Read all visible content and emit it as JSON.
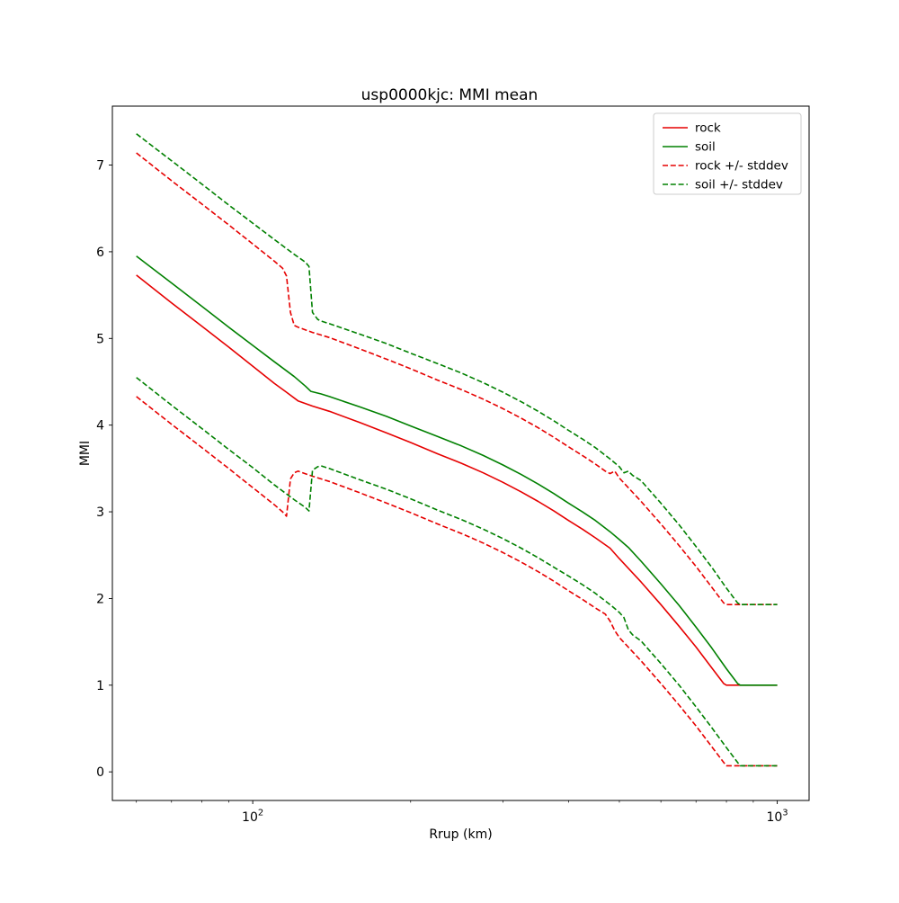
{
  "chart_data": {
    "type": "line",
    "title": "usp0000kjc: MMI mean",
    "xlabel": "Rrup (km)",
    "ylabel": "MMI",
    "x_scale": "log",
    "xlim": [
      54,
      1150
    ],
    "ylim": [
      -0.33,
      7.68
    ],
    "y_ticks": [
      0,
      1,
      2,
      3,
      4,
      5,
      6,
      7
    ],
    "x_major_ticks": [
      {
        "value": 100,
        "base": "10",
        "exp": "2"
      },
      {
        "value": 1000,
        "base": "10",
        "exp": "3"
      }
    ],
    "x_minor_ticks": [
      60,
      70,
      80,
      90,
      200,
      300,
      400,
      500,
      600,
      700,
      800,
      900
    ],
    "grid": false,
    "colors": {
      "rock": "#e60000",
      "soil": "#008000",
      "axis": "#000000",
      "legend_border": "#cccccc"
    },
    "legend": {
      "position": "upper right",
      "entries": [
        {
          "label": "rock",
          "color": "#e60000",
          "dash": "solid"
        },
        {
          "label": "soil",
          "color": "#008000",
          "dash": "solid"
        },
        {
          "label": "rock +/- stddev",
          "color": "#e60000",
          "dash": "dashed"
        },
        {
          "label": "soil +/- stddev",
          "color": "#008000",
          "dash": "dashed"
        }
      ]
    },
    "series": [
      {
        "name": "rock",
        "color": "#e60000",
        "dash": "solid",
        "points": [
          [
            60,
            5.73
          ],
          [
            70,
            5.41
          ],
          [
            80,
            5.14
          ],
          [
            90,
            4.9
          ],
          [
            100,
            4.68
          ],
          [
            110,
            4.48
          ],
          [
            116,
            4.38
          ],
          [
            122,
            4.28
          ],
          [
            130,
            4.22
          ],
          [
            140,
            4.16
          ],
          [
            160,
            4.03
          ],
          [
            180,
            3.91
          ],
          [
            200,
            3.8
          ],
          [
            225,
            3.67
          ],
          [
            250,
            3.56
          ],
          [
            275,
            3.45
          ],
          [
            300,
            3.34
          ],
          [
            325,
            3.23
          ],
          [
            350,
            3.12
          ],
          [
            375,
            3.01
          ],
          [
            400,
            2.9
          ],
          [
            425,
            2.8
          ],
          [
            450,
            2.7
          ],
          [
            480,
            2.58
          ],
          [
            500,
            2.46
          ],
          [
            550,
            2.19
          ],
          [
            600,
            1.93
          ],
          [
            650,
            1.68
          ],
          [
            700,
            1.44
          ],
          [
            750,
            1.2
          ],
          [
            790,
            1.02
          ],
          [
            800,
            1.0
          ],
          [
            900,
            1.0
          ],
          [
            1000,
            1.0
          ]
        ]
      },
      {
        "name": "soil",
        "color": "#008000",
        "dash": "solid",
        "points": [
          [
            60,
            5.95
          ],
          [
            70,
            5.64
          ],
          [
            80,
            5.37
          ],
          [
            90,
            5.13
          ],
          [
            100,
            4.92
          ],
          [
            110,
            4.73
          ],
          [
            120,
            4.56
          ],
          [
            126,
            4.45
          ],
          [
            129,
            4.39
          ],
          [
            135,
            4.36
          ],
          [
            140,
            4.33
          ],
          [
            160,
            4.21
          ],
          [
            180,
            4.1
          ],
          [
            200,
            3.99
          ],
          [
            225,
            3.87
          ],
          [
            250,
            3.76
          ],
          [
            275,
            3.65
          ],
          [
            300,
            3.54
          ],
          [
            325,
            3.43
          ],
          [
            350,
            3.32
          ],
          [
            375,
            3.21
          ],
          [
            400,
            3.1
          ],
          [
            425,
            3.0
          ],
          [
            450,
            2.9
          ],
          [
            480,
            2.77
          ],
          [
            500,
            2.68
          ],
          [
            520,
            2.59
          ],
          [
            550,
            2.43
          ],
          [
            600,
            2.17
          ],
          [
            650,
            1.92
          ],
          [
            700,
            1.67
          ],
          [
            750,
            1.43
          ],
          [
            800,
            1.19
          ],
          [
            840,
            1.02
          ],
          [
            850,
            1.0
          ],
          [
            900,
            1.0
          ],
          [
            1000,
            1.0
          ]
        ]
      },
      {
        "name": "rock + stddev",
        "color": "#e60000",
        "dash": "dashed",
        "points": [
          [
            60,
            7.14
          ],
          [
            70,
            6.82
          ],
          [
            80,
            6.55
          ],
          [
            90,
            6.31
          ],
          [
            100,
            6.09
          ],
          [
            110,
            5.89
          ],
          [
            114,
            5.81
          ],
          [
            116,
            5.72
          ],
          [
            118,
            5.3
          ],
          [
            120,
            5.15
          ],
          [
            122,
            5.13
          ],
          [
            130,
            5.07
          ],
          [
            140,
            5.01
          ],
          [
            160,
            4.88
          ],
          [
            180,
            4.76
          ],
          [
            200,
            4.65
          ],
          [
            225,
            4.52
          ],
          [
            250,
            4.41
          ],
          [
            275,
            4.3
          ],
          [
            300,
            4.19
          ],
          [
            325,
            4.08
          ],
          [
            350,
            3.97
          ],
          [
            375,
            3.86
          ],
          [
            400,
            3.75
          ],
          [
            425,
            3.65
          ],
          [
            450,
            3.55
          ],
          [
            470,
            3.47
          ],
          [
            480,
            3.44
          ],
          [
            490,
            3.47
          ],
          [
            500,
            3.39
          ],
          [
            550,
            3.12
          ],
          [
            600,
            2.86
          ],
          [
            650,
            2.61
          ],
          [
            700,
            2.37
          ],
          [
            750,
            2.13
          ],
          [
            790,
            1.95
          ],
          [
            800,
            1.93
          ],
          [
            900,
            1.93
          ],
          [
            1000,
            1.93
          ]
        ]
      },
      {
        "name": "rock - stddev",
        "color": "#e60000",
        "dash": "dashed",
        "points": [
          [
            60,
            4.33
          ],
          [
            70,
            4.01
          ],
          [
            80,
            3.74
          ],
          [
            90,
            3.5
          ],
          [
            100,
            3.28
          ],
          [
            110,
            3.08
          ],
          [
            114,
            3.0
          ],
          [
            116,
            2.95
          ],
          [
            118,
            3.38
          ],
          [
            120,
            3.45
          ],
          [
            122,
            3.47
          ],
          [
            130,
            3.41
          ],
          [
            140,
            3.35
          ],
          [
            160,
            3.22
          ],
          [
            180,
            3.1
          ],
          [
            200,
            2.99
          ],
          [
            225,
            2.86
          ],
          [
            250,
            2.75
          ],
          [
            275,
            2.64
          ],
          [
            300,
            2.53
          ],
          [
            325,
            2.42
          ],
          [
            350,
            2.31
          ],
          [
            375,
            2.2
          ],
          [
            400,
            2.09
          ],
          [
            425,
            1.99
          ],
          [
            450,
            1.89
          ],
          [
            470,
            1.82
          ],
          [
            480,
            1.74
          ],
          [
            490,
            1.63
          ],
          [
            500,
            1.55
          ],
          [
            550,
            1.28
          ],
          [
            600,
            1.02
          ],
          [
            650,
            0.77
          ],
          [
            700,
            0.53
          ],
          [
            750,
            0.29
          ],
          [
            790,
            0.11
          ],
          [
            800,
            0.07
          ],
          [
            900,
            0.07
          ],
          [
            1000,
            0.07
          ]
        ]
      },
      {
        "name": "soil + stddev",
        "color": "#008000",
        "dash": "dashed",
        "points": [
          [
            60,
            7.36
          ],
          [
            70,
            7.05
          ],
          [
            80,
            6.78
          ],
          [
            90,
            6.54
          ],
          [
            100,
            6.33
          ],
          [
            110,
            6.14
          ],
          [
            120,
            5.97
          ],
          [
            126,
            5.88
          ],
          [
            128,
            5.83
          ],
          [
            130,
            5.3
          ],
          [
            133,
            5.22
          ],
          [
            135,
            5.2
          ],
          [
            140,
            5.17
          ],
          [
            160,
            5.05
          ],
          [
            180,
            4.94
          ],
          [
            200,
            4.83
          ],
          [
            225,
            4.71
          ],
          [
            250,
            4.6
          ],
          [
            275,
            4.49
          ],
          [
            300,
            4.38
          ],
          [
            325,
            4.27
          ],
          [
            350,
            4.16
          ],
          [
            375,
            4.05
          ],
          [
            400,
            3.94
          ],
          [
            425,
            3.84
          ],
          [
            450,
            3.74
          ],
          [
            480,
            3.61
          ],
          [
            500,
            3.52
          ],
          [
            510,
            3.45
          ],
          [
            520,
            3.47
          ],
          [
            530,
            3.42
          ],
          [
            550,
            3.36
          ],
          [
            600,
            3.1
          ],
          [
            650,
            2.85
          ],
          [
            700,
            2.6
          ],
          [
            750,
            2.36
          ],
          [
            800,
            2.12
          ],
          [
            840,
            1.95
          ],
          [
            850,
            1.93
          ],
          [
            900,
            1.93
          ],
          [
            1000,
            1.93
          ]
        ]
      },
      {
        "name": "soil - stddev",
        "color": "#008000",
        "dash": "dashed",
        "points": [
          [
            60,
            4.55
          ],
          [
            70,
            4.23
          ],
          [
            80,
            3.96
          ],
          [
            90,
            3.72
          ],
          [
            100,
            3.51
          ],
          [
            110,
            3.31
          ],
          [
            120,
            3.14
          ],
          [
            126,
            3.05
          ],
          [
            128,
            3.01
          ],
          [
            130,
            3.48
          ],
          [
            133,
            3.52
          ],
          [
            135,
            3.53
          ],
          [
            140,
            3.5
          ],
          [
            160,
            3.37
          ],
          [
            180,
            3.26
          ],
          [
            200,
            3.15
          ],
          [
            225,
            3.02
          ],
          [
            250,
            2.91
          ],
          [
            275,
            2.8
          ],
          [
            300,
            2.69
          ],
          [
            325,
            2.58
          ],
          [
            350,
            2.47
          ],
          [
            375,
            2.36
          ],
          [
            400,
            2.26
          ],
          [
            425,
            2.16
          ],
          [
            450,
            2.06
          ],
          [
            480,
            1.93
          ],
          [
            500,
            1.84
          ],
          [
            510,
            1.78
          ],
          [
            520,
            1.64
          ],
          [
            530,
            1.58
          ],
          [
            550,
            1.51
          ],
          [
            600,
            1.25
          ],
          [
            650,
            1.0
          ],
          [
            700,
            0.75
          ],
          [
            750,
            0.51
          ],
          [
            800,
            0.28
          ],
          [
            840,
            0.11
          ],
          [
            850,
            0.07
          ],
          [
            900,
            0.07
          ],
          [
            1000,
            0.07
          ]
        ]
      }
    ]
  }
}
